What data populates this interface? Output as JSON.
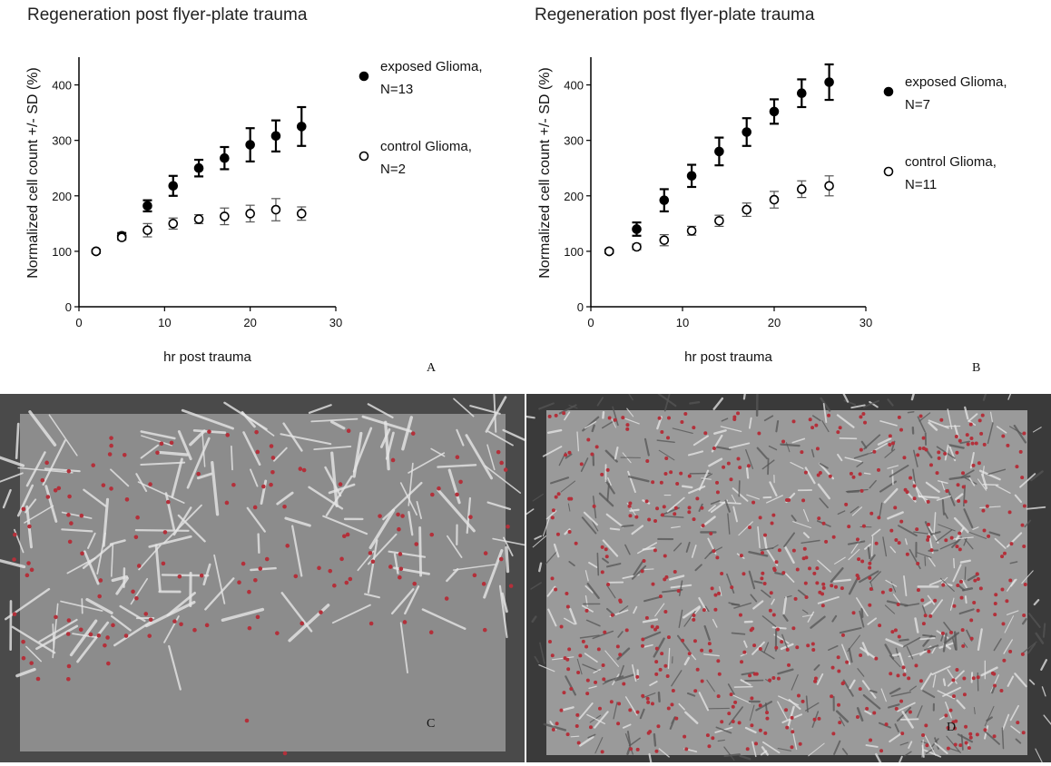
{
  "chart_data": [
    {
      "type": "scatter",
      "panel": "A",
      "title": "Regeneration post flyer-plate trauma",
      "xlabel": "hr post trauma",
      "ylabel": "Normalized cell count +/- SD (%)",
      "xlim": [
        0,
        30
      ],
      "ylim": [
        0,
        450
      ],
      "xticks": [
        0,
        10,
        20,
        30
      ],
      "yticks": [
        0,
        100,
        200,
        300,
        400
      ],
      "legend_position": "right",
      "series": [
        {
          "name": "exposed Glioma, N=13",
          "marker": "filled-circle",
          "x": [
            2,
            5,
            8,
            11,
            14,
            17,
            20,
            23,
            26
          ],
          "y": [
            100,
            128,
            182,
            218,
            250,
            268,
            292,
            308,
            325
          ],
          "err": [
            3,
            5,
            10,
            18,
            15,
            20,
            30,
            28,
            35
          ]
        },
        {
          "name": "control Glioma, N=2",
          "marker": "open-circle",
          "x": [
            2,
            5,
            8,
            11,
            14,
            17,
            20,
            23,
            26
          ],
          "y": [
            100,
            125,
            138,
            150,
            158,
            163,
            168,
            175,
            168
          ],
          "err": [
            3,
            5,
            12,
            10,
            8,
            15,
            15,
            20,
            12
          ]
        }
      ]
    },
    {
      "type": "scatter",
      "panel": "B",
      "title": "Regeneration post flyer-plate trauma",
      "xlabel": "hr post trauma",
      "ylabel": "Normalized cell count +/- SD (%)",
      "xlim": [
        0,
        30
      ],
      "ylim": [
        0,
        450
      ],
      "xticks": [
        0,
        10,
        20,
        30
      ],
      "yticks": [
        0,
        100,
        200,
        300,
        400
      ],
      "legend_position": "right",
      "series": [
        {
          "name": "exposed Glioma, N=7",
          "marker": "filled-circle",
          "x": [
            2,
            5,
            8,
            11,
            14,
            17,
            20,
            23,
            26
          ],
          "y": [
            100,
            140,
            192,
            236,
            280,
            315,
            352,
            385,
            405
          ],
          "err": [
            3,
            12,
            20,
            20,
            25,
            25,
            22,
            25,
            32
          ]
        },
        {
          "name": "control Glioma, N=11",
          "marker": "open-circle",
          "x": [
            2,
            5,
            8,
            11,
            14,
            17,
            20,
            23,
            26
          ],
          "y": [
            100,
            108,
            120,
            137,
            155,
            175,
            193,
            212,
            218
          ],
          "err": [
            3,
            5,
            10,
            8,
            10,
            12,
            15,
            15,
            18
          ]
        }
      ]
    }
  ],
  "micrographs": [
    {
      "panel": "C",
      "description_label": "C"
    },
    {
      "panel": "D",
      "description_label": "D"
    }
  ]
}
